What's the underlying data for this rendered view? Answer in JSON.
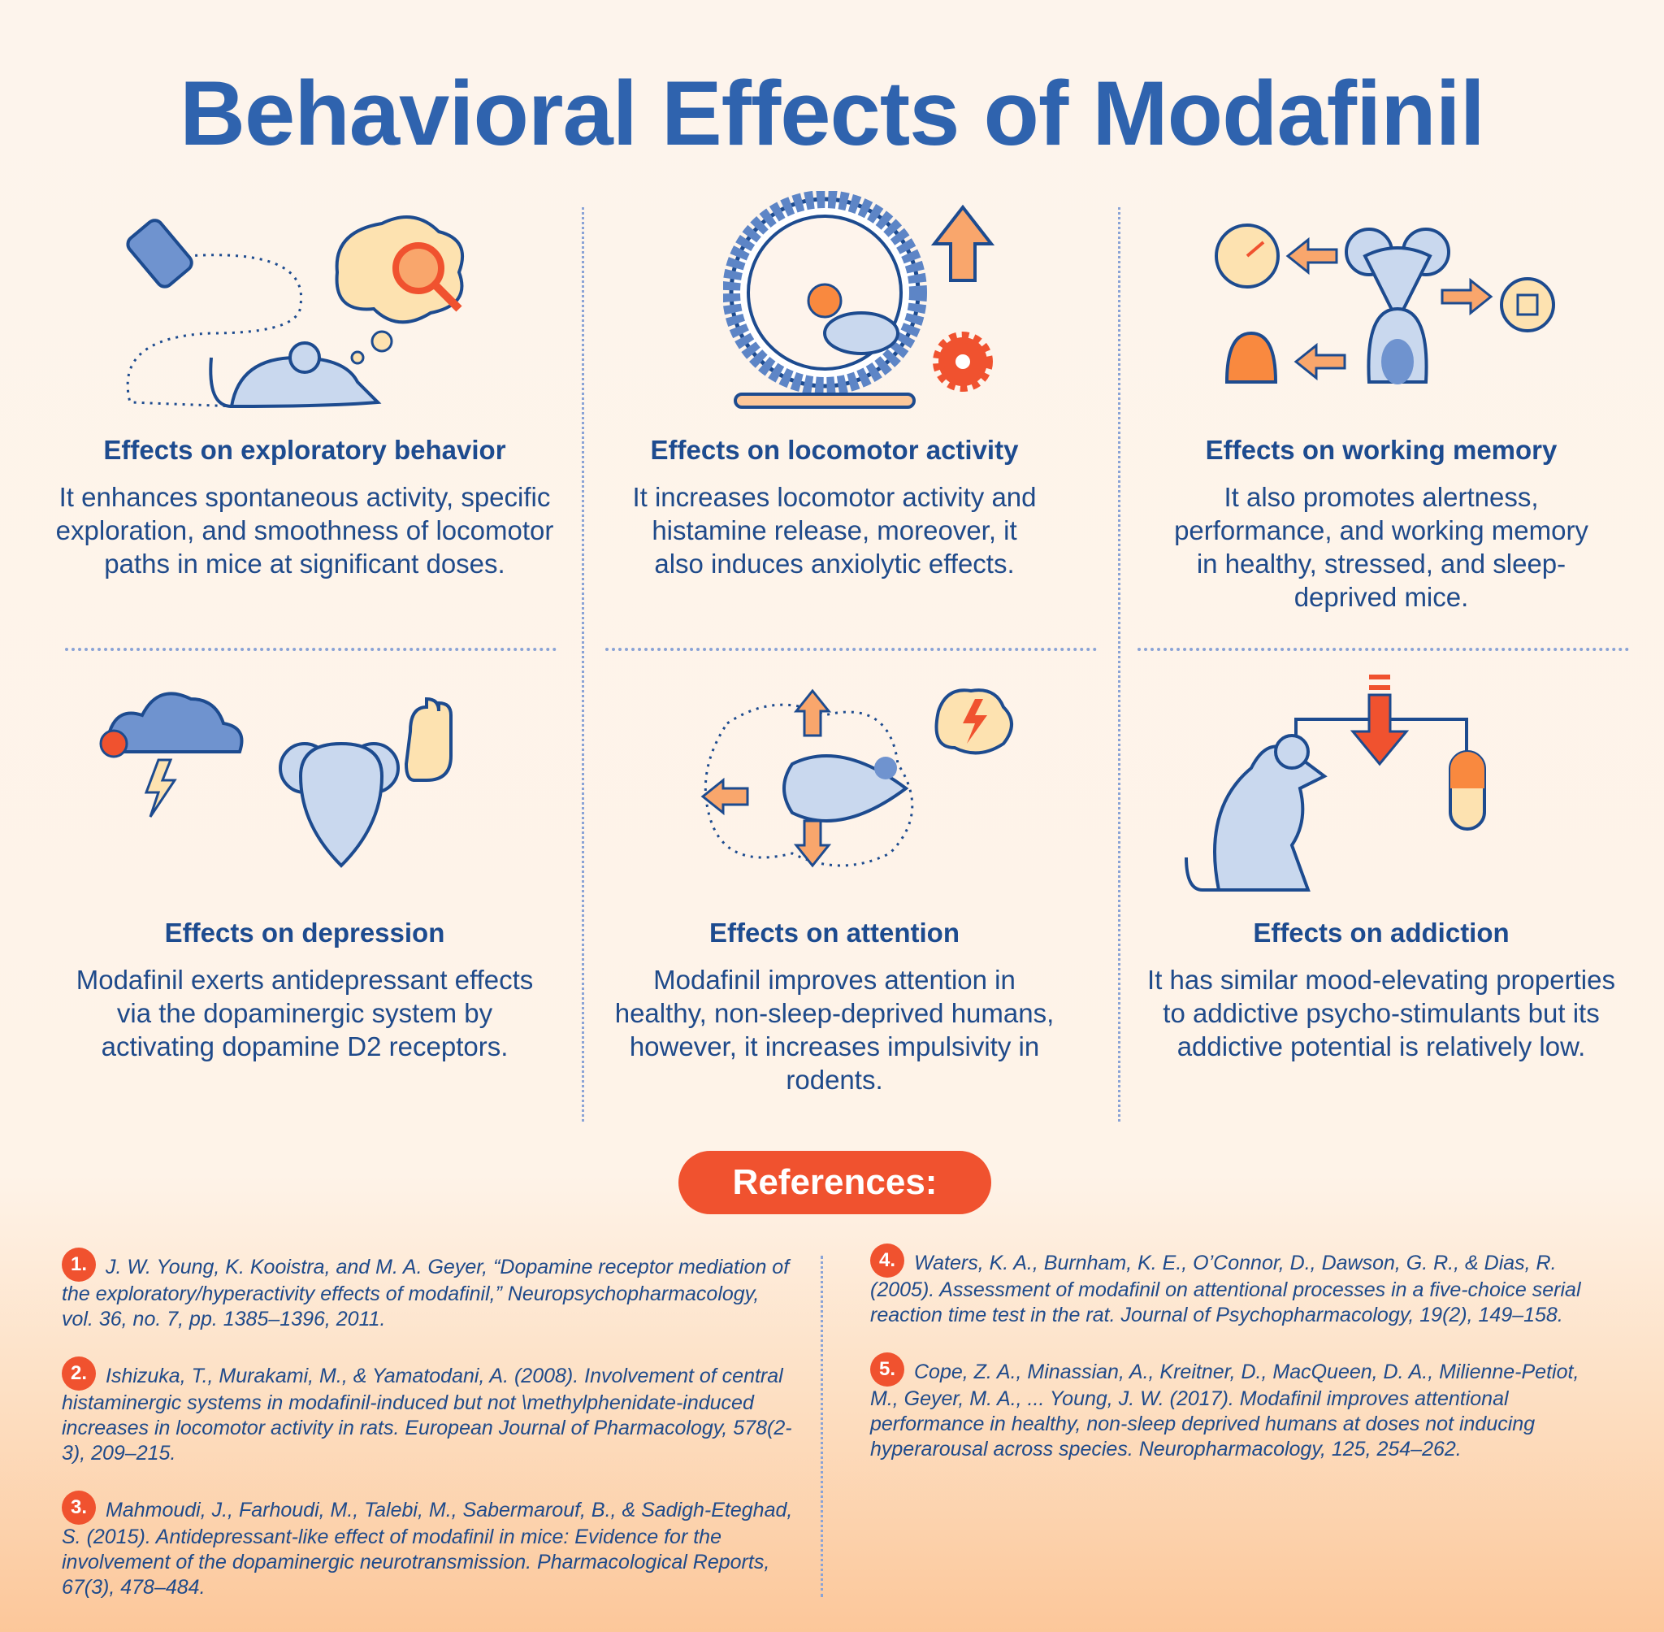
{
  "title": "Behavioral Effects of Modafinil",
  "sections": [
    {
      "heading": "Effects on exploratory behavior",
      "text": "It enhances spontaneous activity, specific exploration, and smoothness of locomotor paths in mice at significant doses.",
      "icon": "mouse-exploring-icon"
    },
    {
      "heading": "Effects on locomotor activity",
      "text": "It increases locomotor activity and histamine release, moreover, it also induces anxiolytic effects.",
      "icon": "hamster-wheel-icon"
    },
    {
      "heading": "Effects on working memory",
      "text": "It also promotes alertness, performance, and working memory in healthy, stressed, and sleep-deprived mice.",
      "icon": "mouse-brain-icon"
    },
    {
      "heading": "Effects on depression",
      "text": "Modafinil exerts antidepressant effects via the dopaminergic system by activating dopamine D2 receptors.",
      "icon": "mouse-storm-icon"
    },
    {
      "heading": "Effects on attention",
      "text": "Modafinil improves attention in healthy, non-sleep-deprived humans, however, it increases impulsivity in rodents.",
      "icon": "mouse-arrows-icon"
    },
    {
      "heading": "Effects on addiction",
      "text": "It has similar mood-elevating properties to addictive psycho-stimulants but its addictive potential is relatively low.",
      "icon": "mouse-pill-icon"
    }
  ],
  "references_label": "References:",
  "references": [
    {
      "num": "1.",
      "text": "J. W. Young, K. Kooistra, and M. A. Geyer, “Dopamine receptor mediation of the exploratory/hyperactivity effects of modafinil,” Neuropsychopharmacology, vol. 36, no. 7, pp. 1385–1396, 2011."
    },
    {
      "num": "2.",
      "text": "Ishizuka, T., Murakami, M., & Yamatodani, A. (2008). Involvement of central histaminergic systems in modafinil-induced but not \\methylphenidate-induced increases in locomotor activity in rats. European Journal of Pharmacology, 578(2-3), 209–215."
    },
    {
      "num": "3.",
      "text": "Mahmoudi, J., Farhoudi, M., Talebi, M., Sabermarouf, B., & Sadigh-Eteghad, S. (2015). Antidepressant-like effect of modafinil in mice: Evidence for the involvement of the dopaminergic neurotransmission. Pharmacological Reports, 67(3), 478–484."
    },
    {
      "num": "4.",
      "text": "Waters, K. A., Burnham, K. E., O’Connor, D., Dawson, G. R., & Dias, R. (2005). Assessment of modafinil on attentional processes in a five-choice serial reaction time test in the rat. Journal of Psychopharmacology, 19(2), 149–158."
    },
    {
      "num": "5.",
      "text": "Cope, Z. A., Minassian, A., Kreitner, D., MacQueen, D. A., Milienne-Petiot, M., Geyer, M. A., ... Young, J. W. (2017). Modafinil improves attentional performance in healthy, non-sleep deprived humans at doses not inducing hyperarousal across species. Neuropharmacology, 125, 254–262."
    }
  ],
  "colors": {
    "title": "#2f63ae",
    "accent": "#f0522f",
    "orange": "#f9a66c",
    "mouse": "#c9d8ee",
    "outline": "#1d4b8f"
  }
}
